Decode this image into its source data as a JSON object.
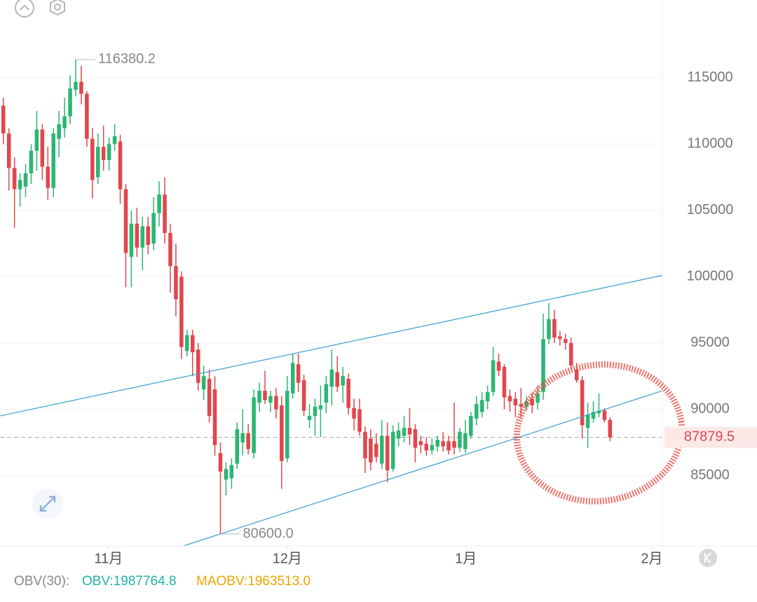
{
  "chart_data": {
    "type": "candlestick",
    "open": [
      112900,
      110800,
      108200,
      106600,
      106800,
      107800,
      109500,
      111100,
      108300,
      106700,
      110400,
      111200,
      112100,
      114100,
      114700,
      113800,
      110400,
      107500,
      109800,
      108800,
      110000,
      110200,
      106600,
      101500,
      104000,
      102200,
      103800,
      102500,
      104800,
      106200,
      103300,
      100800,
      100000,
      94400,
      95600,
      94500,
      91500,
      92300,
      91500,
      86700,
      84700,
      84800,
      85900,
      87500,
      88200,
      86700,
      90500,
      91400,
      90500,
      91000,
      90300,
      86300,
      91200,
      93400,
      92200,
      89200,
      89500,
      90000,
      90500,
      91700,
      92800,
      91800,
      92300,
      90100,
      90000,
      88300,
      87800,
      87400,
      85900,
      88000,
      85500,
      87800,
      88000,
      88600,
      88500,
      87600,
      87400,
      86900,
      87200,
      87600,
      87600,
      87600,
      87100,
      87000,
      88000,
      89300,
      89800,
      90600,
      91300,
      93600,
      93200,
      91000,
      90800,
      90400,
      90200,
      90800,
      90500,
      91300,
      95300,
      96800,
      95500,
      95300,
      95000,
      93000,
      92200,
      88600,
      89300,
      89700,
      89900,
      89200
    ],
    "high": [
      113500,
      111200,
      109000,
      107800,
      108500,
      110000,
      112500,
      111500,
      109800,
      111200,
      112500,
      113500,
      115200,
      116380.2,
      115900,
      114000,
      111200,
      110800,
      111400,
      110500,
      111500,
      110700,
      107000,
      105000,
      105200,
      104500,
      104500,
      106000,
      107200,
      107500,
      104000,
      102500,
      100400,
      96000,
      96000,
      95000,
      93300,
      93000,
      92500,
      87500,
      86000,
      86300,
      89000,
      90000,
      88900,
      91500,
      92000,
      92900,
      91400,
      91600,
      91000,
      92500,
      94200,
      94200,
      92600,
      90400,
      90800,
      91800,
      92500,
      94500,
      94000,
      93200,
      92700,
      90800,
      90800,
      88700,
      88500,
      88200,
      89200,
      89000,
      88800,
      89000,
      89500,
      90100,
      88900,
      88000,
      87900,
      87800,
      88000,
      88300,
      88000,
      90500,
      88600,
      89200,
      89800,
      91000,
      91300,
      91800,
      94700,
      94200,
      93400,
      91500,
      91300,
      91600,
      91000,
      91200,
      91800,
      97200,
      98000,
      97500,
      95900,
      95700,
      95400,
      93500,
      92500,
      90500,
      90600,
      91200,
      90100,
      89400
    ],
    "low": [
      110000,
      106500,
      103700,
      105300,
      106000,
      107000,
      108000,
      107300,
      105800,
      106000,
      109000,
      110500,
      111500,
      113600,
      113000,
      109800,
      105900,
      107000,
      108000,
      108000,
      109500,
      105500,
      99200,
      99200,
      101500,
      100500,
      101700,
      102000,
      103800,
      102500,
      98800,
      97000,
      93800,
      94000,
      92500,
      91400,
      90700,
      89000,
      86500,
      80600,
      83500,
      84000,
      85500,
      86500,
      86600,
      86300,
      89800,
      90400,
      89800,
      89300,
      84000,
      86000,
      90800,
      91300,
      89500,
      88600,
      88000,
      87900,
      89700,
      90300,
      91300,
      90500,
      89600,
      88400,
      88000,
      85200,
      85400,
      86000,
      85500,
      84500,
      85300,
      87200,
      87500,
      87300,
      86000,
      86700,
      86500,
      86600,
      86800,
      86800,
      86600,
      86600,
      86800,
      86700,
      87800,
      88800,
      89400,
      90000,
      91000,
      92500,
      90000,
      89800,
      89400,
      89400,
      89900,
      89700,
      90000,
      90700,
      94900,
      95000,
      94800,
      94500,
      93000,
      92000,
      87800,
      87100,
      89000,
      89400,
      89000,
      87600
    ],
    "close": [
      110800,
      108200,
      106600,
      107300,
      107800,
      109500,
      111100,
      108300,
      106700,
      110800,
      111500,
      112100,
      114200,
      114700,
      113800,
      110400,
      107300,
      109800,
      108800,
      110000,
      110600,
      106600,
      101800,
      104000,
      102200,
      103800,
      102400,
      104800,
      106200,
      103300,
      100800,
      98300,
      94700,
      95600,
      94300,
      92000,
      92500,
      89500,
      87300,
      85300,
      85500,
      85800,
      88500,
      88200,
      87000,
      90900,
      91400,
      90700,
      91000,
      90000,
      86100,
      91400,
      93500,
      92000,
      89900,
      89500,
      90200,
      90300,
      91900,
      93000,
      91700,
      92500,
      90100,
      89300,
      88300,
      86300,
      86000,
      86400,
      88000,
      85400,
      88300,
      88400,
      88600,
      88100,
      87100,
      87300,
      86900,
      87300,
      87700,
      87200,
      86900,
      87100,
      88300,
      88200,
      89500,
      90400,
      90700,
      91300,
      93700,
      92900,
      90900,
      90600,
      90300,
      90200,
      90600,
      90300,
      91200,
      95300,
      96800,
      95400,
      95300,
      95000,
      93300,
      92200,
      88800,
      89600,
      89800,
      89900,
      89200,
      87879.5
    ],
    "up_color": "#2bb673",
    "down_color": "#e0474d",
    "xlim": [
      -0.6,
      118.4
    ],
    "xticks": [
      {
        "value": 18.9,
        "label": "11月"
      },
      {
        "value": 51,
        "label": "12月"
      },
      {
        "value": 83.1,
        "label": "1月"
      },
      {
        "value": 116.5,
        "label": "2月"
      }
    ],
    "ylim": [
      79700,
      120870
    ],
    "yticks": [
      85000,
      90000,
      95000,
      100000,
      105000,
      110000,
      115000
    ],
    "grid": true,
    "extreme_labels": [
      {
        "index": 13,
        "value": 116380.2,
        "label": "116380.2"
      },
      {
        "index": 39,
        "value": 80600,
        "label": "80600.0"
      }
    ],
    "last_price": {
      "value": 87879.5,
      "label": "87879.5"
    },
    "trendlines": [
      {
        "x": [
          -0.6,
          118.4
        ],
        "y": [
          89500,
          100100
        ],
        "color": "#3a9fd0"
      },
      {
        "x": [
          32.4,
          118.4
        ],
        "y": [
          79700,
          91400
        ],
        "color": "#3a9fd0"
      }
    ],
    "indicator": {
      "name": "OBV(30):",
      "obv": "OBV:1987764.8",
      "maobv": "MAOBV:1963513.0",
      "obv_color": "#1fb5a6",
      "maobv_color": "#f0a400"
    }
  }
}
